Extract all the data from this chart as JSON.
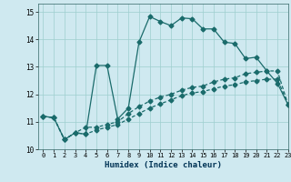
{
  "title": "",
  "xlabel": "Humidex (Indice chaleur)",
  "bg_color": "#cfe9f0",
  "line_color": "#1a6b6b",
  "grid_color": "#9ecece",
  "xlim": [
    -0.5,
    23
  ],
  "ylim": [
    10,
    15.3
  ],
  "yticks": [
    10,
    11,
    12,
    13,
    14,
    15
  ],
  "xticks": [
    0,
    1,
    2,
    3,
    4,
    5,
    6,
    7,
    8,
    9,
    10,
    11,
    12,
    13,
    14,
    15,
    16,
    17,
    18,
    19,
    20,
    21,
    22,
    23
  ],
  "line1_x": [
    0,
    1,
    2,
    3,
    4,
    5,
    6,
    7,
    8,
    9,
    10,
    11,
    12,
    13,
    14,
    15,
    16,
    17,
    18,
    19,
    20,
    21,
    22,
    23
  ],
  "line1_y": [
    11.2,
    11.15,
    10.35,
    10.6,
    10.55,
    13.05,
    13.05,
    11.1,
    11.5,
    13.9,
    14.83,
    14.65,
    14.5,
    14.78,
    14.75,
    14.38,
    14.38,
    13.9,
    13.85,
    13.3,
    13.35,
    12.85,
    12.4,
    11.62
  ],
  "line2_x": [
    0,
    1,
    2,
    3,
    4,
    5,
    6,
    7,
    8,
    9,
    10,
    11,
    12,
    13,
    14,
    15,
    16,
    17,
    18,
    19,
    20,
    21,
    22,
    23
  ],
  "line2_y": [
    11.2,
    11.15,
    10.35,
    10.6,
    10.8,
    10.8,
    10.9,
    11.0,
    11.3,
    11.55,
    11.75,
    11.9,
    12.0,
    12.15,
    12.25,
    12.3,
    12.45,
    12.55,
    12.6,
    12.75,
    12.8,
    12.85,
    12.85,
    11.62
  ],
  "line3_x": [
    0,
    1,
    2,
    3,
    4,
    5,
    6,
    7,
    8,
    9,
    10,
    11,
    12,
    13,
    14,
    15,
    16,
    17,
    18,
    19,
    20,
    21,
    22,
    23
  ],
  "line3_y": [
    11.2,
    11.15,
    10.35,
    10.6,
    10.55,
    10.7,
    10.8,
    10.9,
    11.1,
    11.3,
    11.5,
    11.65,
    11.8,
    11.95,
    12.05,
    12.1,
    12.2,
    12.3,
    12.35,
    12.45,
    12.5,
    12.55,
    12.55,
    11.62
  ],
  "markersize": 2.5,
  "linewidth": 0.9
}
